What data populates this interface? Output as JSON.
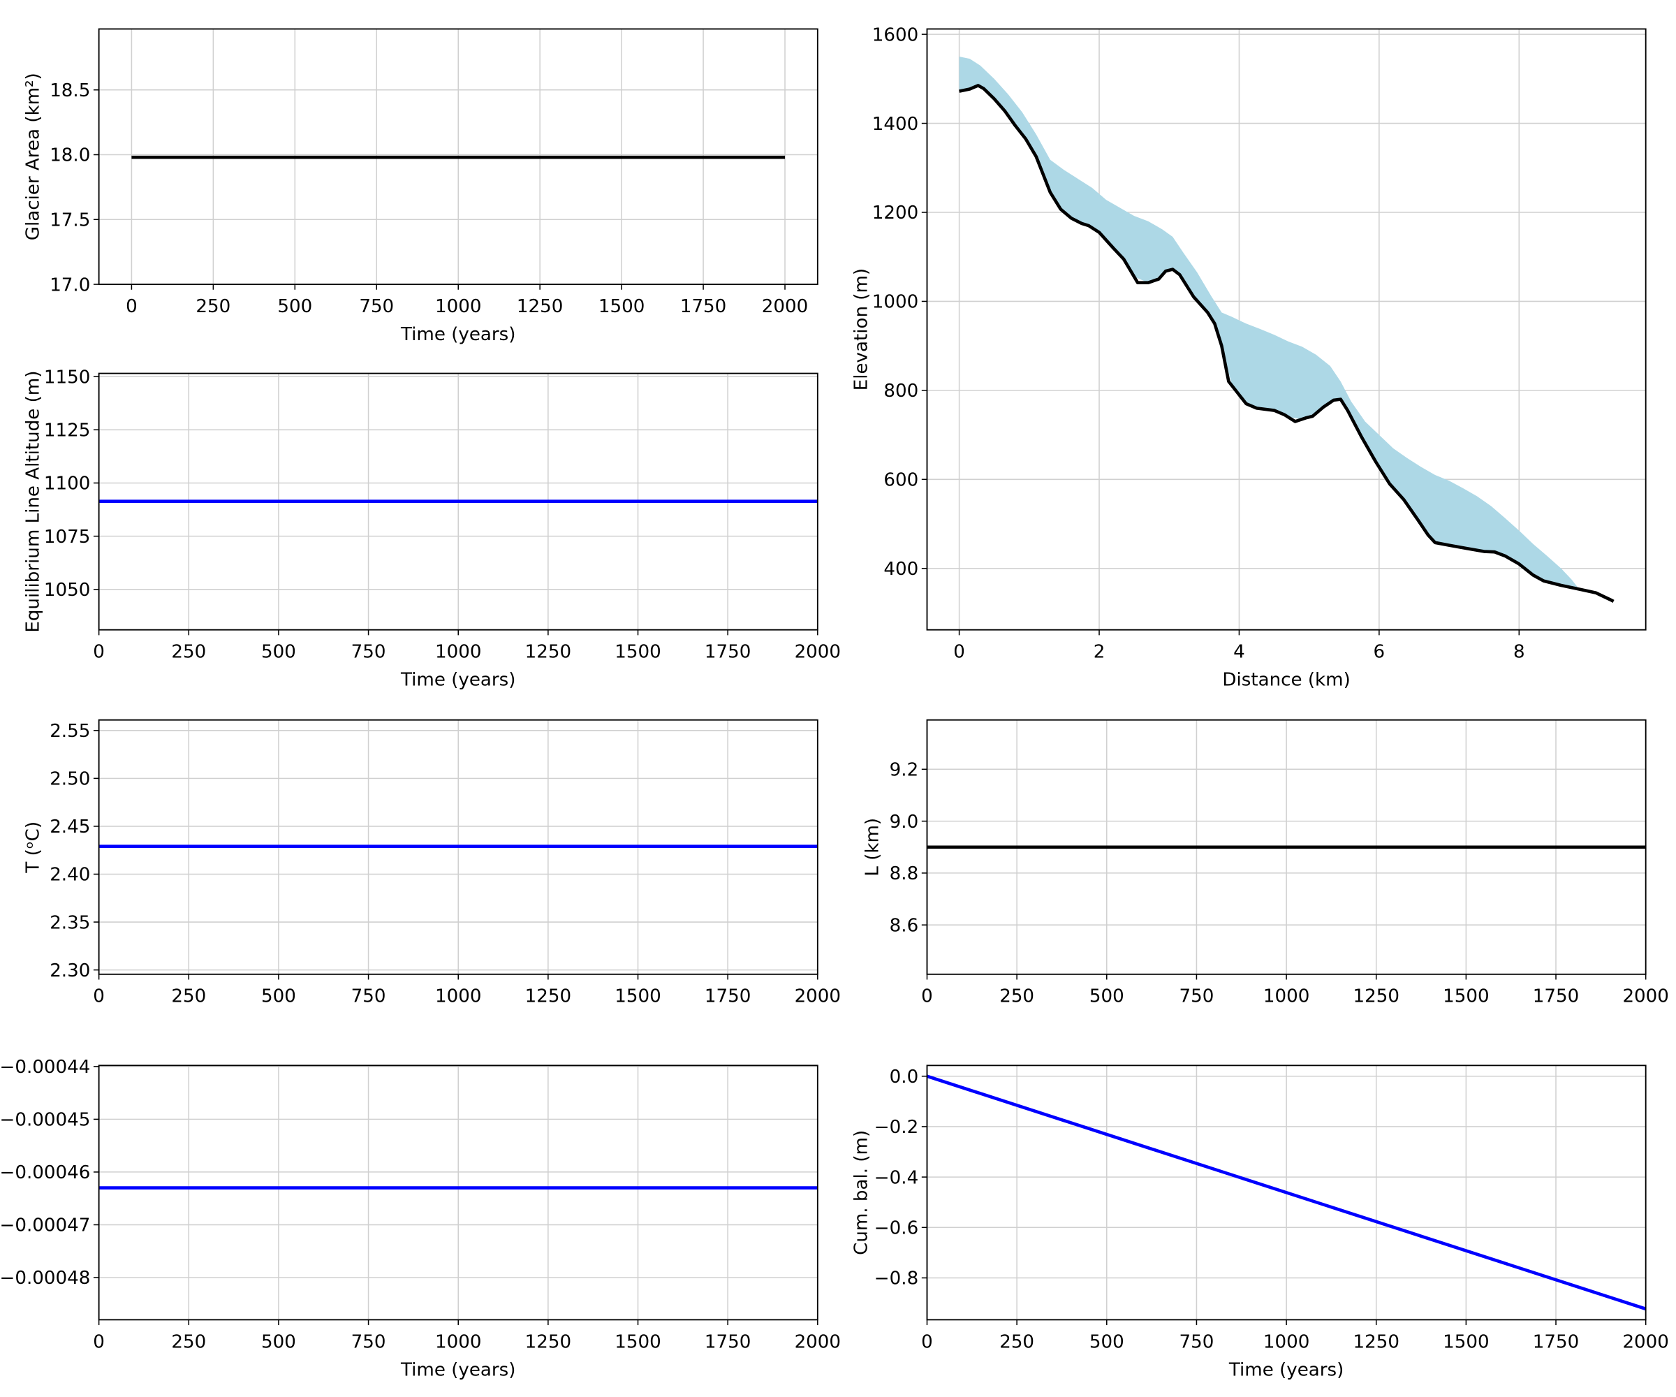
{
  "chart_data": [
    {
      "type": "line",
      "xlabel": "Time (years)",
      "ylabel": "Glacier Area (km²)",
      "grid": true,
      "xlim": [
        -100,
        2100
      ],
      "xticks": [
        0,
        250,
        500,
        750,
        1000,
        1250,
        1500,
        1750,
        2000
      ],
      "ylim": [
        17.0,
        18.97
      ],
      "yticks": [
        {
          "value": 17,
          "label": "17.0"
        },
        17.5,
        {
          "value": 18,
          "label": "18.0"
        },
        18.5
      ],
      "series": [
        {
          "color": "#000000",
          "x": [
            0,
            2000
          ],
          "values": [
            17.98,
            17.98
          ]
        }
      ]
    },
    {
      "type": "line",
      "xlabel": "Time (years)",
      "ylabel": "Equilibrium Line Altitude (m)",
      "grid": true,
      "xlim": [
        0,
        2000
      ],
      "xticks": [
        0,
        250,
        500,
        750,
        1000,
        1250,
        1500,
        1750,
        2000
      ],
      "ylim": [
        1031,
        1151.5
      ],
      "yticks": [
        1050,
        1075,
        1100,
        1125,
        1150
      ],
      "series": [
        {
          "color": "#0000ff",
          "x": [
            0,
            2000
          ],
          "values": [
            1091.4,
            1091.4
          ]
        }
      ]
    },
    {
      "type": "line",
      "xlabel": "Distance (km)",
      "ylabel": "Elevation (m)",
      "grid": true,
      "xlim": [
        -0.46,
        9.81
      ],
      "xticks": [
        0,
        2,
        4,
        6,
        8
      ],
      "ylim": [
        262,
        1612
      ],
      "yticks": [
        400,
        600,
        800,
        1000,
        1200,
        1400,
        1600
      ],
      "series": [
        {
          "color": "#add8e6",
          "kind": "fill",
          "x": [
            0,
            0.15,
            0.3,
            0.5,
            0.7,
            0.9,
            1.1,
            1.3,
            1.5,
            1.7,
            1.9,
            2.1,
            2.3,
            2.5,
            2.7,
            2.9,
            3.05,
            3.2,
            3.4,
            3.6,
            3.75,
            3.9,
            4.1,
            4.3,
            4.5,
            4.7,
            4.9,
            5.1,
            5.3,
            5.45,
            5.6,
            5.8,
            6.0,
            6.2,
            6.4,
            6.6,
            6.8,
            7.0,
            7.2,
            7.4,
            7.6,
            7.8,
            8.0,
            8.2,
            8.4,
            8.6,
            8.75,
            8.85
          ],
          "values": [
            1550,
            1545,
            1530,
            1500,
            1465,
            1425,
            1375,
            1318,
            1295,
            1275,
            1255,
            1228,
            1210,
            1192,
            1180,
            1162,
            1145,
            1110,
            1065,
            1012,
            975,
            965,
            950,
            938,
            925,
            910,
            898,
            880,
            855,
            820,
            775,
            730,
            700,
            670,
            648,
            628,
            610,
            597,
            580,
            562,
            540,
            513,
            485,
            455,
            428,
            400,
            375,
            355
          ]
        },
        {
          "color": "#000000",
          "x": [
            0,
            0.15,
            0.27,
            0.35,
            0.5,
            0.65,
            0.8,
            0.95,
            1.1,
            1.2,
            1.3,
            1.45,
            1.6,
            1.75,
            1.85,
            2.0,
            2.2,
            2.35,
            2.55,
            2.7,
            2.85,
            2.95,
            3.05,
            3.15,
            3.35,
            3.55,
            3.65,
            3.75,
            3.85,
            3.95,
            4.1,
            4.25,
            4.5,
            4.65,
            4.8,
            4.95,
            5.05,
            5.2,
            5.35,
            5.45,
            5.55,
            5.75,
            5.95,
            6.15,
            6.35,
            6.55,
            6.7,
            6.8,
            7.0,
            7.25,
            7.5,
            7.65,
            7.8,
            8.0,
            8.2,
            8.35,
            8.6,
            8.9,
            9.1,
            9.3,
            9.35
          ],
          "values": [
            1472,
            1477,
            1485,
            1478,
            1455,
            1428,
            1395,
            1365,
            1325,
            1285,
            1245,
            1207,
            1187,
            1175,
            1170,
            1155,
            1120,
            1095,
            1042,
            1042,
            1050,
            1068,
            1072,
            1060,
            1010,
            975,
            950,
            900,
            820,
            800,
            770,
            760,
            755,
            745,
            730,
            738,
            742,
            762,
            778,
            780,
            755,
            695,
            640,
            590,
            555,
            510,
            475,
            458,
            452,
            445,
            438,
            437,
            428,
            410,
            385,
            372,
            362,
            352,
            345,
            330,
            326
          ]
        }
      ]
    },
    {
      "type": "line",
      "ylabel": "T (ᵒC)",
      "grid": true,
      "xlim": [
        0,
        2000
      ],
      "xticks": [
        0,
        250,
        500,
        750,
        1000,
        1250,
        1500,
        1750,
        2000
      ],
      "ylim": [
        2.2955,
        2.561
      ],
      "yticks": [
        {
          "value": 2.3,
          "label": "2.30"
        },
        2.35,
        {
          "value": 2.4,
          "label": "2.40"
        },
        2.45,
        {
          "value": 2.5,
          "label": "2.50"
        },
        2.55
      ],
      "series": [
        {
          "color": "#0000ff",
          "x": [
            0,
            2000
          ],
          "values": [
            2.429,
            2.429
          ]
        }
      ]
    },
    {
      "type": "line",
      "ylabel": "L (km)",
      "grid": true,
      "xlim": [
        0,
        2000
      ],
      "xticks": [
        0,
        250,
        500,
        750,
        1000,
        1250,
        1500,
        1750,
        2000
      ],
      "ylim": [
        8.41,
        9.39
      ],
      "yticks": [
        8.6,
        8.8,
        {
          "value": 9,
          "label": "9.0"
        },
        9.2
      ],
      "series": [
        {
          "color": "#000000",
          "x": [
            0,
            2000
          ],
          "values": [
            8.9,
            8.9
          ]
        }
      ]
    },
    {
      "type": "line",
      "xlabel": "Time (years)",
      "grid": true,
      "xlim": [
        0,
        2000
      ],
      "xticks": [
        0,
        250,
        500,
        750,
        1000,
        1250,
        1500,
        1750,
        2000
      ],
      "ylim": [
        -0.000488,
        -0.0004398
      ],
      "yticks": [
        {
          "value": -0.00044,
          "label": "−0.00044"
        },
        {
          "value": -0.00045,
          "label": "−0.00045"
        },
        {
          "value": -0.00046,
          "label": "−0.00046"
        },
        {
          "value": -0.00047,
          "label": "−0.00047"
        },
        {
          "value": -0.00048,
          "label": "−0.00048"
        }
      ],
      "series": [
        {
          "color": "#0000ff",
          "x": [
            0,
            2000
          ],
          "values": [
            -0.000463,
            -0.000463
          ]
        }
      ]
    },
    {
      "type": "line",
      "xlabel": "Time (years)",
      "ylabel": "Cum. bal. (m)",
      "grid": true,
      "xlim": [
        0,
        2000
      ],
      "xticks": [
        0,
        250,
        500,
        750,
        1000,
        1250,
        1500,
        1750,
        2000
      ],
      "ylim": [
        -0.966,
        0.0426
      ],
      "yticks": [
        {
          "value": 0,
          "label": "0.0"
        },
        {
          "value": -0.2,
          "label": "−0.2"
        },
        {
          "value": -0.4,
          "label": "−0.4"
        },
        {
          "value": -0.6,
          "label": "−0.6"
        },
        {
          "value": -0.8,
          "label": "−0.8"
        }
      ],
      "series": [
        {
          "color": "#0000ff",
          "x": [
            0,
            2000
          ],
          "values": [
            0,
            -0.923
          ]
        }
      ]
    }
  ]
}
